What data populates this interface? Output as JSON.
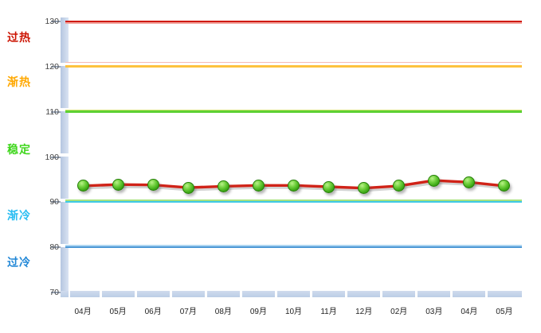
{
  "chart_data": {
    "type": "line",
    "title": "",
    "categories": [
      "04月",
      "05月",
      "06月",
      "07月",
      "08月",
      "09月",
      "10月",
      "11月",
      "12月",
      "02月",
      "03月",
      "04月",
      "05月"
    ],
    "series": [
      {
        "values": [
          93.6,
          93.9,
          93.8,
          93.2,
          93.5,
          93.7,
          93.7,
          93.4,
          93.1,
          93.6,
          94.8,
          94.4,
          93.6
        ],
        "line_color": "#d02318",
        "marker_color": "#46b91e"
      }
    ],
    "ylim": [
      70,
      130
    ],
    "yticks": [
      70,
      80,
      90,
      100,
      110,
      120,
      130
    ],
    "grid": false,
    "legend": false,
    "thresholds": [
      {
        "value": 130,
        "color": "#d01a10",
        "edge_color": "#f2a49e",
        "edge_side": "below",
        "edge_gap": 0
      },
      {
        "value": 120,
        "color": "#fdc23e",
        "edge_color": "#f6b9b4",
        "edge_side": "above",
        "edge_gap": 3
      },
      {
        "value": 110,
        "color": "#5dd134",
        "edge_color": "#cfe36c",
        "edge_side": "above",
        "edge_gap": 0
      },
      {
        "value": 90,
        "color": "#3ec9e6",
        "edge_color": "#a9e27d",
        "edge_side": "above",
        "edge_gap": 0
      },
      {
        "value": 80,
        "color": "#4c97d5",
        "edge_color": "#aed6f2",
        "edge_side": "above",
        "edge_gap": 0
      }
    ],
    "zones": [
      {
        "label": "过热",
        "color": "#cc1402",
        "anchor_value": 126.5
      },
      {
        "label": "渐热",
        "color": "#ffa800",
        "anchor_value": 116.6
      },
      {
        "label": "稳定",
        "color": "#3ed61b",
        "anchor_value": 101.6
      },
      {
        "label": "渐冷",
        "color": "#29bdf2",
        "anchor_value": 87.0
      },
      {
        "label": "过冷",
        "color": "#1f86d6",
        "anchor_value": 76.6
      }
    ],
    "axis": {
      "bar_color": "#c3d2e8",
      "tick_color": "#9aa6b8",
      "y_label_color": "#444444",
      "x_label_color": "#222222"
    }
  }
}
